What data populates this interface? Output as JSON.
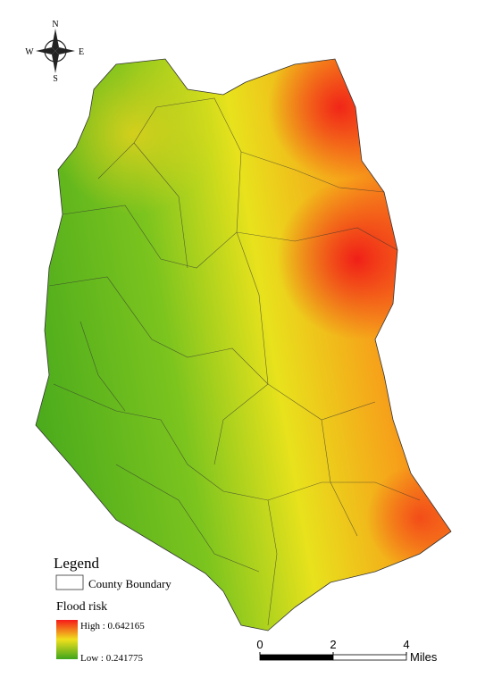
{
  "compass": {
    "north": "N",
    "south": "S",
    "east": "E",
    "west": "W"
  },
  "legend": {
    "title": "Legend",
    "boundary_label": "County Boundary",
    "ramp_title": "Flood risk",
    "high_label": "High : 0.642165",
    "low_label": "Low : 0.241775"
  },
  "scale_bar": {
    "ticks": [
      0,
      2,
      4
    ],
    "unit": "Miles"
  }
}
